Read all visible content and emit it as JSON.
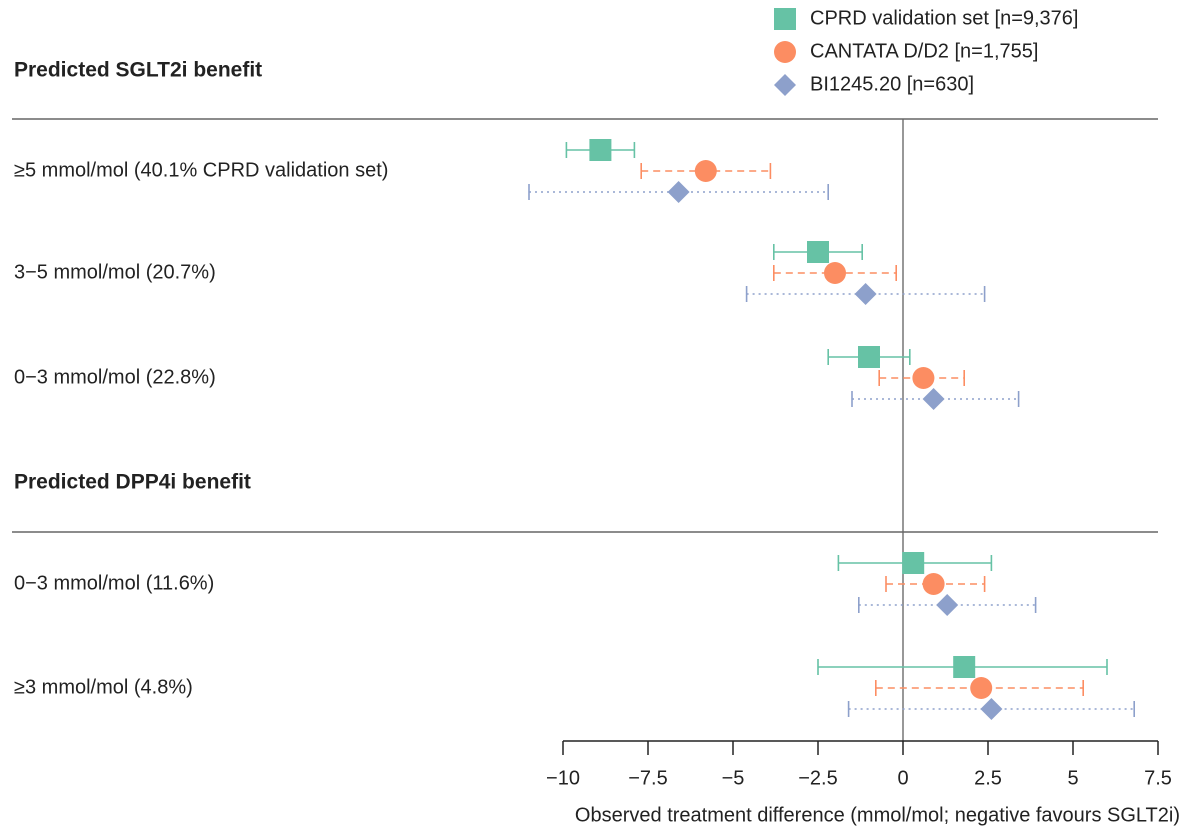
{
  "chart_data": {
    "type": "forest",
    "x_label": "Observed treatment difference (mmol/mol; negative favours SGLT2i)",
    "groups": [
      {
        "title": "Predicted SGLT2i benefit",
        "categories": [
          "≥5 mmol/mol (40.1% CPRD validation set)",
          "3−5 mmol/mol (20.7%)",
          "0−3 mmol/mol (22.8%)"
        ]
      },
      {
        "title": "Predicted DPP4i benefit",
        "categories": [
          "0−3 mmol/mol (11.6%)",
          "≥3 mmol/mol (4.8%)"
        ]
      }
    ],
    "series": [
      {
        "name": "CPRD validation set [n=9,376]",
        "color": "#66c2a5",
        "marker": "square",
        "linestyle": "solid",
        "values": [
          -8.9,
          -2.5,
          -1.0,
          0.3,
          1.8
        ],
        "lower": [
          -9.9,
          -3.8,
          -2.2,
          -1.9,
          -2.5
        ],
        "upper": [
          -7.9,
          -1.2,
          0.2,
          2.6,
          6.0
        ]
      },
      {
        "name": "CANTATA D/D2  [n=1,755]",
        "color": "#fc8d62",
        "marker": "circle",
        "linestyle": "dashed",
        "values": [
          -5.8,
          -2.0,
          0.6,
          0.9,
          2.3
        ],
        "lower": [
          -7.7,
          -3.8,
          -0.7,
          -0.5,
          -0.8
        ],
        "upper": [
          -3.9,
          -0.2,
          1.8,
          2.4,
          5.3
        ]
      },
      {
        "name": "BI1245.20 [n=630]",
        "color": "#8da0cb",
        "marker": "diamond",
        "linestyle": "dotted",
        "values": [
          -6.6,
          -1.1,
          0.9,
          1.3,
          2.6
        ],
        "lower": [
          -11.0,
          -4.6,
          -1.5,
          -1.3,
          -1.6
        ],
        "upper": [
          -2.2,
          2.4,
          3.4,
          3.9,
          6.8
        ]
      }
    ],
    "xlim": [
      -10,
      7.5
    ],
    "xticks": [
      {
        "value": -10,
        "label": "−10"
      },
      {
        "value": -7.5,
        "label": "−7.5"
      },
      {
        "value": -5,
        "label": "−5"
      },
      {
        "value": -2.5,
        "label": "−2.5"
      },
      0,
      2.5,
      5,
      7.5
    ],
    "reference_line": 0
  }
}
